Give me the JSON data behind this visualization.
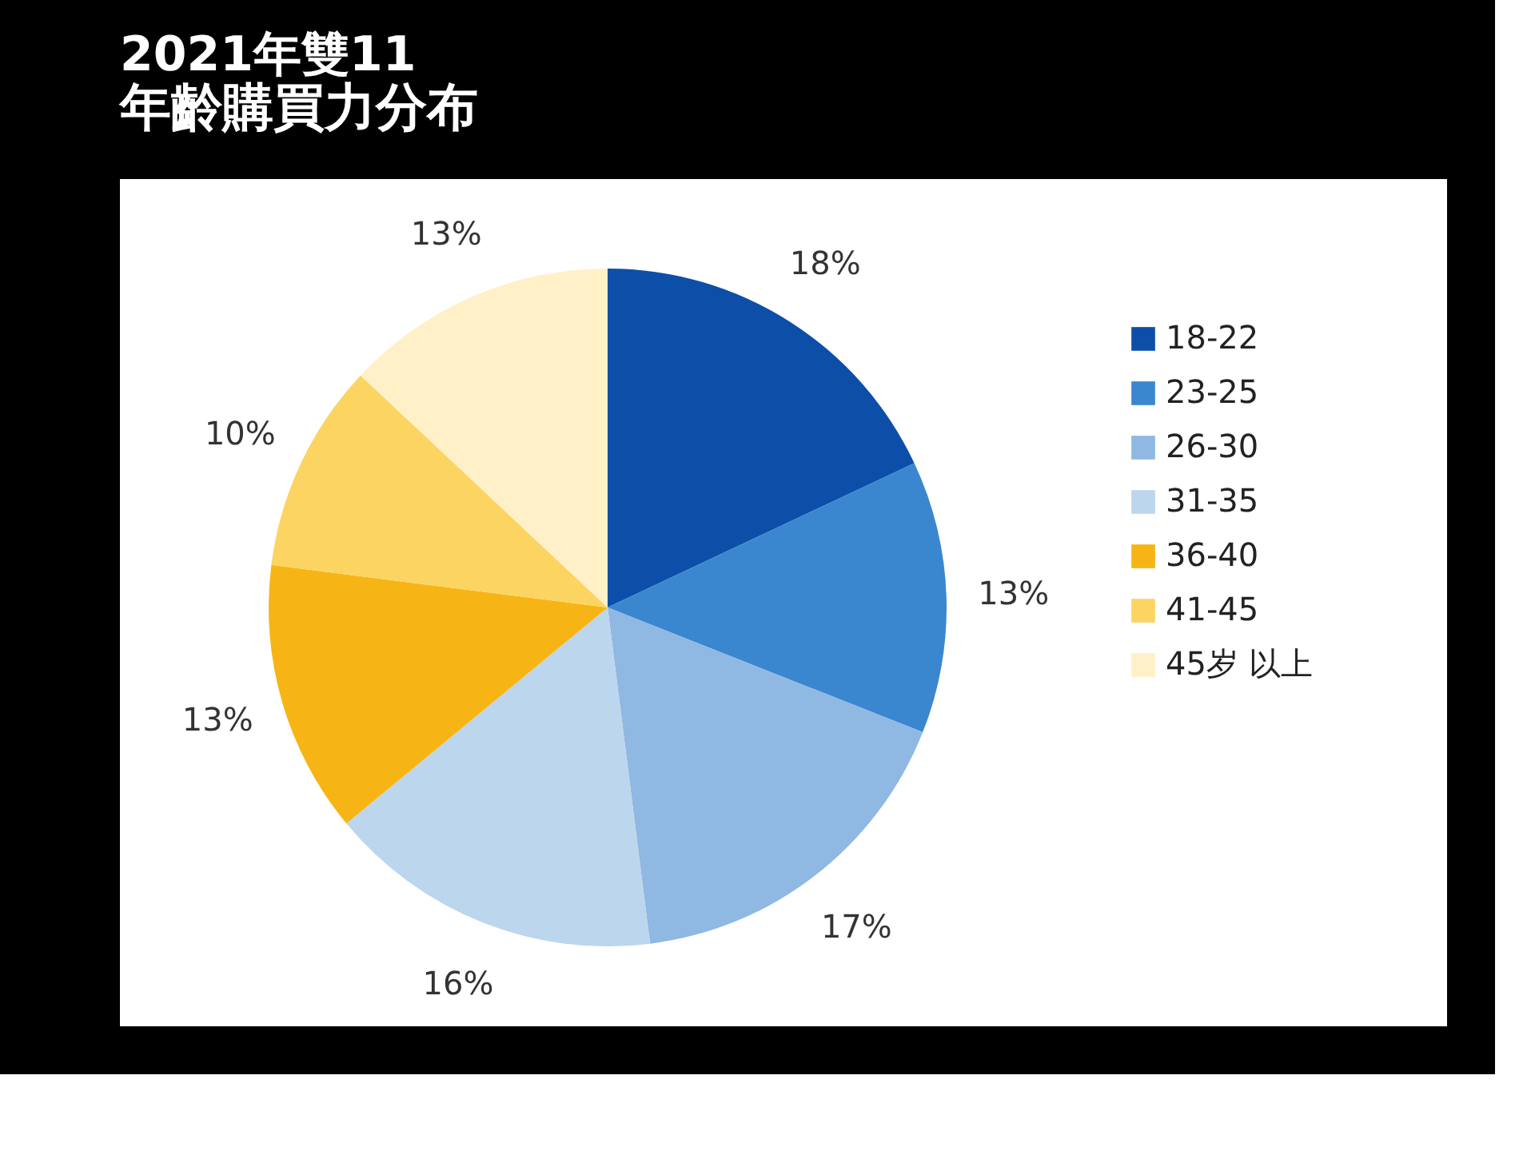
{
  "chart_data": {
    "type": "pie",
    "title": "2021年雙11",
    "subtitle": "年齡購買力分布",
    "categories": [
      "18-22",
      "23-25",
      "26-30",
      "31-35",
      "36-40",
      "41-45",
      "45岁 以上"
    ],
    "values": [
      18,
      13,
      17,
      16,
      13,
      10,
      13
    ],
    "colors": [
      "#0d4fa8",
      "#3a87d0",
      "#8fb8e3",
      "#bcd6ee",
      "#f7b515",
      "#fcd462",
      "#fff0c8"
    ],
    "value_labels": [
      "18%",
      "13%",
      "17%",
      "16%",
      "13%",
      "10%",
      "13%"
    ],
    "legend": "right"
  }
}
